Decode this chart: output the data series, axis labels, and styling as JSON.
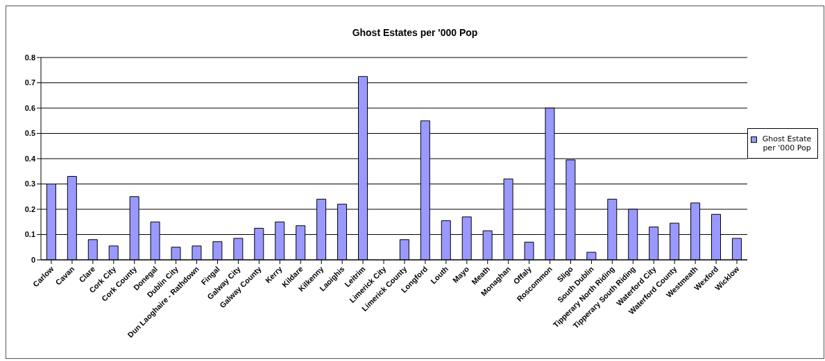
{
  "chart_data": {
    "type": "bar",
    "title": "Ghost Estates per '000 Pop",
    "categories": [
      "Carlow",
      "Cavan",
      "Clare",
      "Cork City",
      "Cork County",
      "Donegal",
      "Dublin City",
      "Dun Laoghaire - Rathdown",
      "Fingal",
      "Galway City",
      "Galway County",
      "Kerry",
      "Kildare",
      "Kilkenny",
      "Laoighis",
      "Leitrim",
      "Limerick City",
      "Limerick County",
      "Longford",
      "Louth",
      "Mayo",
      "Meath",
      "Monaghan",
      "Offaly",
      "Roscommon",
      "Sligo",
      "South Dublin",
      "Tipperary North Riding",
      "Tipperary South Riding",
      "Waterford City",
      "Waterford County",
      "Westmeath",
      "Wexford",
      "Wicklow"
    ],
    "series": [
      {
        "name": "Ghost Estate per '000 Pop",
        "color": "#9999ff",
        "values": [
          0.3,
          0.33,
          0.08,
          0.055,
          0.25,
          0.15,
          0.05,
          0.055,
          0.072,
          0.085,
          0.125,
          0.15,
          0.135,
          0.24,
          0.22,
          0.725,
          null,
          0.08,
          0.55,
          0.155,
          0.17,
          0.115,
          0.32,
          0.07,
          0.6,
          0.395,
          0.03,
          0.24,
          0.2,
          0.13,
          0.145,
          0.225,
          0.18,
          0.085
        ]
      }
    ],
    "ylim": [
      0,
      0.8
    ],
    "yticks": [
      0,
      0.1,
      0.2,
      0.3,
      0.4,
      0.5,
      0.6,
      0.7,
      0.8
    ],
    "grid": "y",
    "legend": "right"
  }
}
